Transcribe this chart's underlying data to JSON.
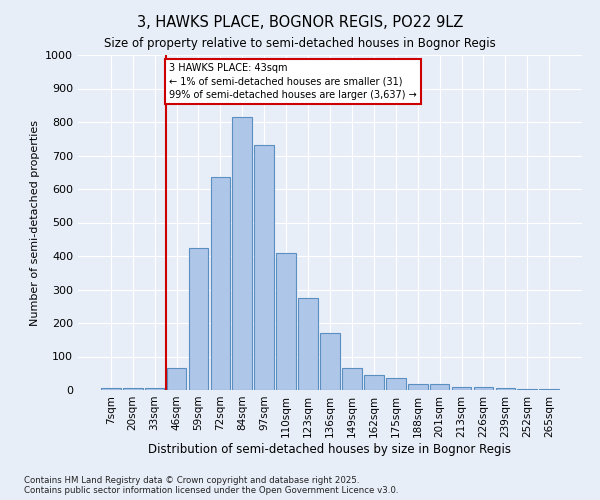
{
  "title": "3, HAWKS PLACE, BOGNOR REGIS, PO22 9LZ",
  "subtitle": "Size of property relative to semi-detached houses in Bognor Regis",
  "xlabel": "Distribution of semi-detached houses by size in Bognor Regis",
  "ylabel": "Number of semi-detached properties",
  "footnote": "Contains HM Land Registry data © Crown copyright and database right 2025.\nContains public sector information licensed under the Open Government Licence v3.0.",
  "bar_labels": [
    "7sqm",
    "20sqm",
    "33sqm",
    "46sqm",
    "59sqm",
    "72sqm",
    "84sqm",
    "97sqm",
    "110sqm",
    "123sqm",
    "136sqm",
    "149sqm",
    "162sqm",
    "175sqm",
    "188sqm",
    "201sqm",
    "213sqm",
    "226sqm",
    "239sqm",
    "252sqm",
    "265sqm"
  ],
  "bar_values": [
    5,
    5,
    5,
    65,
    425,
    635,
    815,
    730,
    410,
    275,
    170,
    65,
    45,
    37,
    18,
    18,
    8,
    8,
    5,
    2,
    2
  ],
  "bar_color": "#aec6e8",
  "bar_edge_color": "#5a8fc2",
  "bg_color": "#e8eef8",
  "grid_color": "#ffffff",
  "annotation_text": "3 HAWKS PLACE: 43sqm\n← 1% of semi-detached houses are smaller (31)\n99% of semi-detached houses are larger (3,637) →",
  "vline_color": "#cc0000",
  "box_color": "#cc0000",
  "ylim": [
    0,
    1000
  ],
  "yticks": [
    0,
    100,
    200,
    300,
    400,
    500,
    600,
    700,
    800,
    900,
    1000
  ]
}
